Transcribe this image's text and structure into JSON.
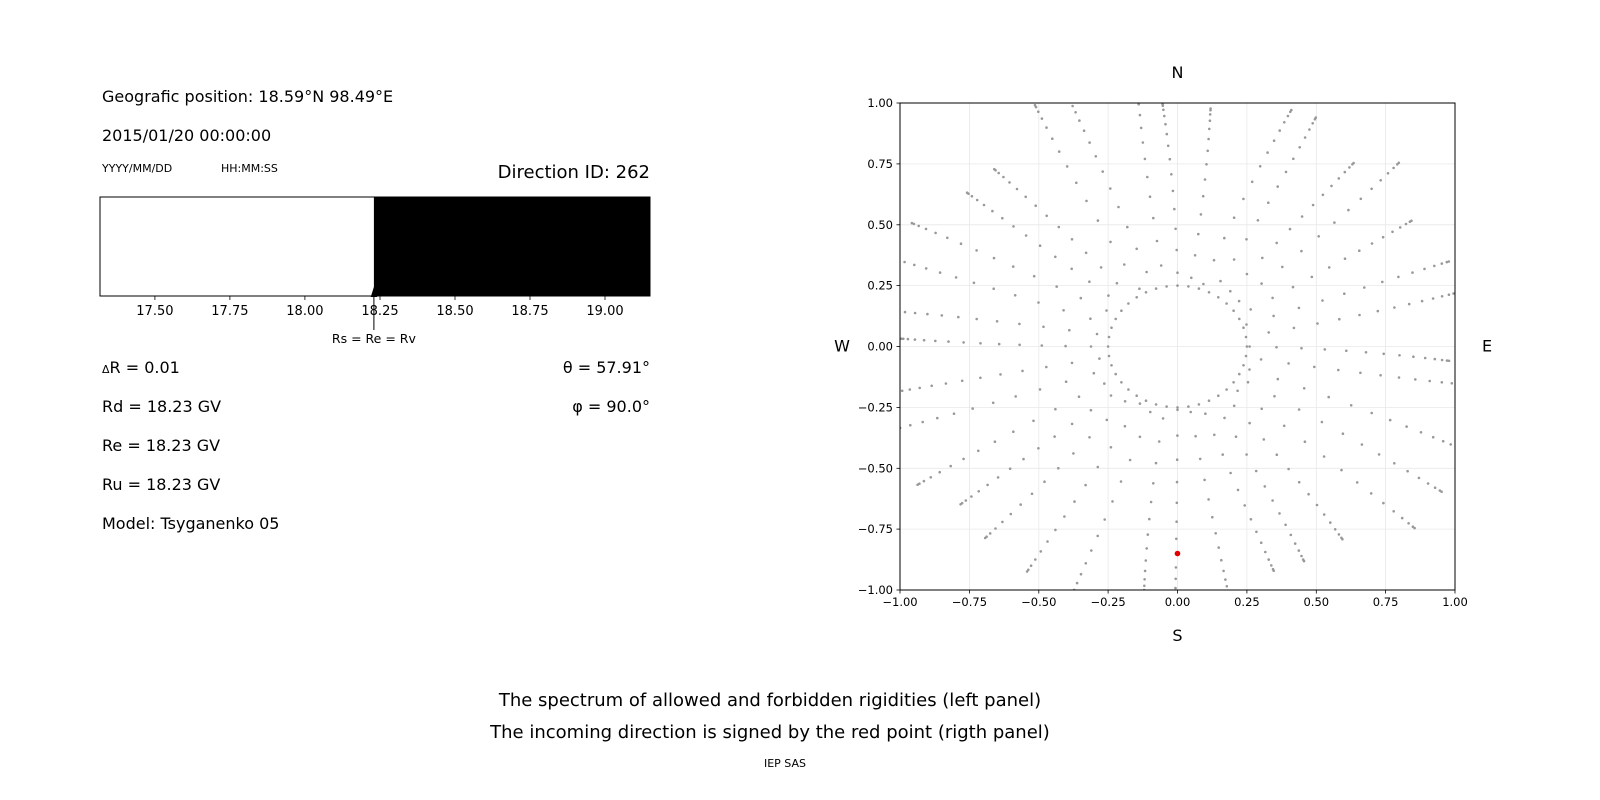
{
  "header": {
    "position_label": "Geografic position: 18.59°N 98.49°E",
    "datetime": "2015/01/20 00:00:00",
    "date_format": "YYYY/MM/DD",
    "time_format": "HH:MM:SS",
    "direction_id": "Direction ID: 262"
  },
  "params": {
    "delta_symbol": "Δ",
    "delta_rest": "R = 0.01",
    "rd": "Rd = 18.23 GV",
    "re": "Re = 18.23 GV",
    "ru": "Ru = 18.23 GV",
    "model": "Model: Tsyganenko 05",
    "theta": "θ = 57.91°",
    "phi": "φ = 90.0°"
  },
  "captions": {
    "line1": "The spectrum of allowed and forbidden rigidities (left panel)",
    "line2": "The incoming direction is signed by the red point (rigth panel)",
    "credit": "IEP SAS"
  },
  "chart_data": [
    {
      "type": "area",
      "name": "rigidity-spectrum",
      "xlim": [
        17.317,
        19.15
      ],
      "xticks": {
        "values": [
          17.5,
          17.75,
          18.0,
          18.25,
          18.5,
          18.75,
          19.0
        ],
        "labels": [
          "17.50",
          "17.75",
          "18.00",
          "18.25",
          "18.50",
          "18.75",
          "19.00"
        ]
      },
      "regions": [
        {
          "name": "allowed",
          "from": 17.317,
          "to": 18.23,
          "fill": "#ffffff"
        },
        {
          "name": "forbidden",
          "from": 18.23,
          "to": 19.15,
          "fill": "#000000"
        }
      ],
      "annotation": {
        "label": "Rs = Re = Rv",
        "x": 18.23
      }
    },
    {
      "type": "scatter",
      "name": "asymptotic-directions",
      "xlim": [
        -1,
        1
      ],
      "ylim": [
        -1,
        1
      ],
      "grid": true,
      "grid_color": "#e8e8e8",
      "dot_color": "#999999",
      "xticks": {
        "values": [
          -1,
          -0.75,
          -0.5,
          -0.25,
          0,
          0.25,
          0.5,
          0.75,
          1
        ],
        "labels": [
          "−1.00",
          "−0.75",
          "−0.50",
          "−0.25",
          "0.00",
          "0.25",
          "0.50",
          "0.75",
          "1.00"
        ]
      },
      "yticks": {
        "values": [
          1,
          0.75,
          0.5,
          0.25,
          0,
          -0.25,
          -0.5,
          -0.75,
          -1
        ],
        "labels": [
          "1.00",
          "0.75",
          "0.50",
          "0.25",
          "0.00",
          "−0.25",
          "−0.50",
          "−0.75",
          "−1.00"
        ]
      },
      "compass": {
        "top": "N",
        "bottom": "S",
        "left": "W",
        "right": "E"
      },
      "pattern": {
        "ring": {
          "radius": 0.25,
          "points": 40
        },
        "spokes": {
          "count": 36,
          "r_start": 0.3,
          "r_end": 1.06,
          "points_per_spoke": 14,
          "ease_exponent": 1.8,
          "start_jitter": 0.04,
          "end_jitter": 0.08
        }
      },
      "red_point": {
        "x": 0.0,
        "y": -0.85,
        "color": "#e50000",
        "label": "incoming-direction"
      }
    }
  ]
}
